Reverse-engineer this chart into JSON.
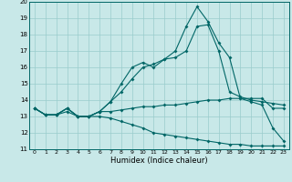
{
  "xlabel": "Humidex (Indice chaleur)",
  "x": [
    0,
    1,
    2,
    3,
    4,
    5,
    6,
    7,
    8,
    9,
    10,
    11,
    12,
    13,
    14,
    15,
    16,
    17,
    18,
    19,
    20,
    21,
    22,
    23
  ],
  "line1": [
    13.5,
    13.1,
    13.1,
    13.5,
    13.0,
    13.0,
    13.3,
    13.9,
    15.0,
    16.0,
    16.3,
    16.0,
    16.5,
    17.0,
    18.5,
    19.7,
    18.8,
    17.5,
    16.6,
    14.1,
    13.9,
    13.7,
    12.3,
    11.5
  ],
  "line2": [
    13.5,
    13.1,
    13.1,
    13.5,
    13.0,
    13.0,
    13.3,
    13.9,
    14.5,
    15.3,
    16.0,
    16.2,
    16.5,
    16.6,
    17.0,
    18.5,
    18.6,
    17.0,
    14.5,
    14.2,
    14.0,
    13.9,
    13.8,
    13.7
  ],
  "line3": [
    13.5,
    13.1,
    13.1,
    13.5,
    13.0,
    13.0,
    13.3,
    13.3,
    13.4,
    13.5,
    13.6,
    13.6,
    13.7,
    13.7,
    13.8,
    13.9,
    14.0,
    14.0,
    14.1,
    14.1,
    14.1,
    14.1,
    13.5,
    13.5
  ],
  "line4": [
    13.5,
    13.1,
    13.1,
    13.3,
    13.0,
    13.0,
    13.0,
    12.9,
    12.7,
    12.5,
    12.3,
    12.0,
    11.9,
    11.8,
    11.7,
    11.6,
    11.5,
    11.4,
    11.3,
    11.3,
    11.2,
    11.2,
    11.2,
    11.2
  ],
  "bg_color": "#c8e8e8",
  "line_color": "#006666",
  "grid_color": "#99cccc",
  "ylim": [
    11,
    20
  ],
  "yticks": [
    11,
    12,
    13,
    14,
    15,
    16,
    17,
    18,
    19,
    20
  ]
}
